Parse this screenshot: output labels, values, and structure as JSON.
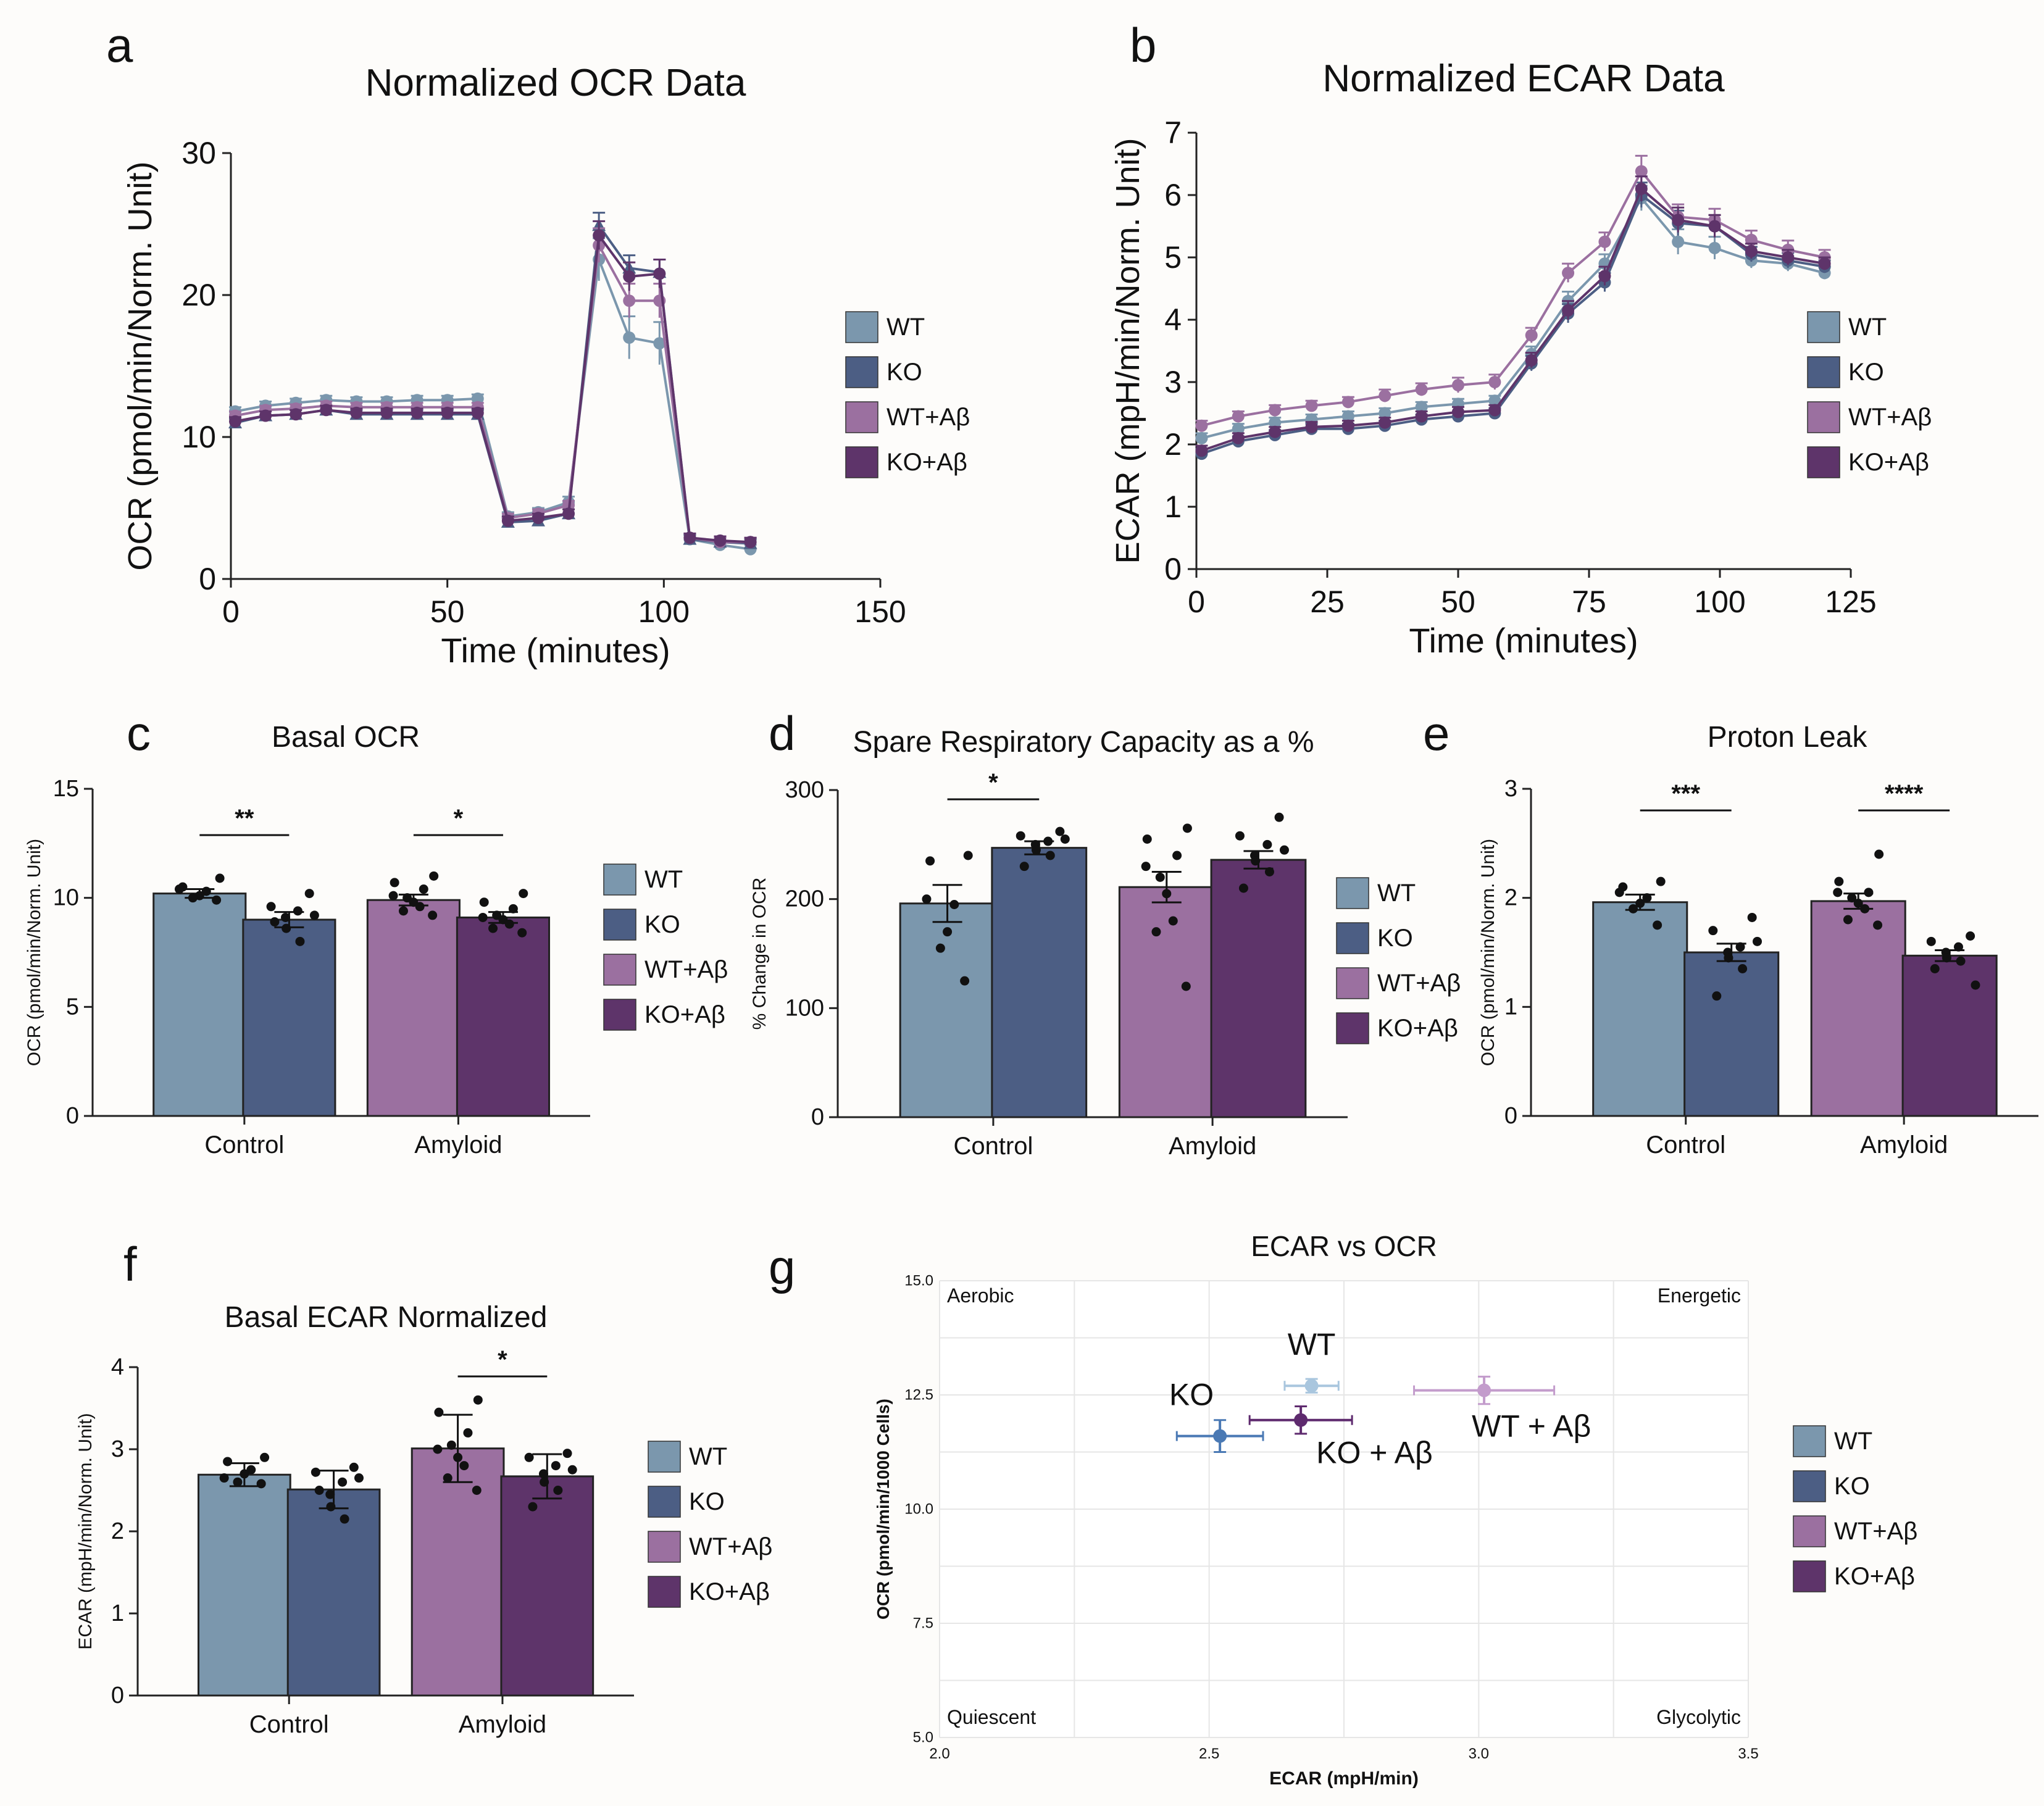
{
  "colors": {
    "WT": "#7b97ad",
    "KO": "#4c5e84",
    "WTAb": "#9b70a0",
    "KOAb": "#5e346a"
  },
  "chart_data": [
    {
      "panel": "a",
      "type": "line",
      "title": "Normalized OCR Data",
      "xlabel": "Time (minutes)",
      "ylabel": "OCR (pmol/min/Norm. Unit)",
      "xlim": [
        0,
        150
      ],
      "ylim": [
        0,
        30
      ],
      "xticks": [
        "0",
        "50",
        "100",
        "150"
      ],
      "yticks": [
        "0",
        "10",
        "20",
        "30"
      ],
      "legend": [
        "WT",
        "KO",
        "WT+Aβ",
        "KO+Aβ"
      ],
      "legend_position": "right",
      "x": [
        1,
        8,
        15,
        22,
        29,
        36,
        43,
        50,
        57,
        64,
        71,
        78,
        85,
        92,
        99,
        106,
        113,
        120
      ],
      "series": [
        {
          "name": "WT",
          "values": [
            11.8,
            12.2,
            12.4,
            12.6,
            12.5,
            12.5,
            12.6,
            12.6,
            12.7,
            4.4,
            4.7,
            5.4,
            22.5,
            17.0,
            16.6,
            2.8,
            2.4,
            2.1
          ],
          "err": [
            0.3,
            0.3,
            0.3,
            0.3,
            0.3,
            0.3,
            0.3,
            0.3,
            0.3,
            0.3,
            0.3,
            0.4,
            1.5,
            1.5,
            1.5,
            0.3,
            0.3,
            0.3
          ]
        },
        {
          "name": "KO",
          "values": [
            11.0,
            11.5,
            11.6,
            11.9,
            11.6,
            11.6,
            11.6,
            11.6,
            11.6,
            4.0,
            4.1,
            4.6,
            24.9,
            21.9,
            21.6,
            2.8,
            2.6,
            2.5
          ],
          "err": [
            0.3,
            0.3,
            0.3,
            0.3,
            0.3,
            0.3,
            0.3,
            0.3,
            0.3,
            0.3,
            0.3,
            0.3,
            0.9,
            0.9,
            0.9,
            0.3,
            0.3,
            0.3
          ]
        },
        {
          "name": "WT+Aβ",
          "values": [
            11.5,
            11.9,
            12.0,
            12.2,
            12.1,
            12.1,
            12.1,
            12.1,
            12.1,
            4.3,
            4.6,
            5.2,
            23.5,
            19.6,
            19.6,
            2.9,
            2.6,
            2.6
          ],
          "err": [
            0.3,
            0.3,
            0.3,
            0.3,
            0.3,
            0.3,
            0.3,
            0.3,
            0.3,
            0.3,
            0.3,
            0.3,
            1.2,
            1.2,
            1.2,
            0.3,
            0.3,
            0.3
          ]
        },
        {
          "name": "KO+Aβ",
          "values": [
            11.1,
            11.5,
            11.6,
            11.9,
            11.7,
            11.7,
            11.7,
            11.7,
            11.7,
            4.1,
            4.3,
            4.6,
            24.2,
            21.3,
            21.5,
            2.9,
            2.7,
            2.6
          ],
          "err": [
            0.3,
            0.3,
            0.3,
            0.3,
            0.3,
            0.3,
            0.3,
            0.3,
            0.3,
            0.3,
            0.3,
            0.3,
            1.0,
            1.0,
            1.0,
            0.3,
            0.3,
            0.3
          ]
        }
      ]
    },
    {
      "panel": "b",
      "type": "line",
      "title": "Normalized ECAR Data",
      "xlabel": "Time (minutes)",
      "ylabel": "ECAR (mpH/min/Norm. Unit)",
      "xlim": [
        0,
        125
      ],
      "ylim": [
        0,
        7
      ],
      "xticks": [
        "0",
        "25",
        "50",
        "75",
        "100",
        "125"
      ],
      "yticks": [
        "0",
        "1",
        "2",
        "3",
        "4",
        "5",
        "6",
        "7"
      ],
      "legend": [
        "WT",
        "KO",
        "WT+Aβ",
        "KO+Aβ"
      ],
      "legend_position": "right",
      "x": [
        1,
        8,
        15,
        22,
        29,
        36,
        43,
        50,
        57,
        64,
        71,
        78,
        85,
        92,
        99,
        106,
        113,
        120
      ],
      "series": [
        {
          "name": "WT",
          "values": [
            2.1,
            2.25,
            2.35,
            2.4,
            2.45,
            2.5,
            2.6,
            2.65,
            2.7,
            3.45,
            4.3,
            4.9,
            5.95,
            5.25,
            5.15,
            4.95,
            4.9,
            4.75
          ],
          "err": [
            0.08,
            0.08,
            0.08,
            0.08,
            0.08,
            0.08,
            0.08,
            0.08,
            0.08,
            0.12,
            0.15,
            0.15,
            0.2,
            0.2,
            0.18,
            0.12,
            0.12,
            0.1
          ]
        },
        {
          "name": "KO",
          "values": [
            1.85,
            2.05,
            2.15,
            2.25,
            2.25,
            2.3,
            2.4,
            2.45,
            2.5,
            3.3,
            4.1,
            4.6,
            6.0,
            5.55,
            5.5,
            5.05,
            4.95,
            4.85
          ],
          "err": [
            0.08,
            0.08,
            0.08,
            0.08,
            0.08,
            0.08,
            0.08,
            0.08,
            0.08,
            0.12,
            0.15,
            0.15,
            0.2,
            0.2,
            0.18,
            0.12,
            0.12,
            0.1
          ]
        },
        {
          "name": "WT+Aβ",
          "values": [
            2.3,
            2.45,
            2.55,
            2.62,
            2.68,
            2.78,
            2.88,
            2.95,
            3.0,
            3.75,
            4.75,
            5.25,
            6.38,
            5.65,
            5.6,
            5.28,
            5.12,
            5.0
          ],
          "err": [
            0.08,
            0.08,
            0.08,
            0.08,
            0.08,
            0.1,
            0.1,
            0.12,
            0.12,
            0.12,
            0.15,
            0.15,
            0.25,
            0.2,
            0.18,
            0.15,
            0.15,
            0.12
          ]
        },
        {
          "name": "KO+Aβ",
          "values": [
            1.9,
            2.1,
            2.2,
            2.28,
            2.3,
            2.35,
            2.45,
            2.52,
            2.55,
            3.35,
            4.15,
            4.7,
            6.1,
            5.6,
            5.5,
            5.1,
            5.0,
            4.9
          ],
          "err": [
            0.08,
            0.08,
            0.08,
            0.08,
            0.08,
            0.08,
            0.08,
            0.08,
            0.08,
            0.12,
            0.15,
            0.15,
            0.2,
            0.2,
            0.18,
            0.12,
            0.12,
            0.1
          ]
        }
      ]
    },
    {
      "panel": "c",
      "type": "bar",
      "title": "Basal OCR",
      "ylabel": "OCR (pmol/min/Norm. Unit)",
      "xlabel": "",
      "ylim": [
        0,
        15
      ],
      "yticks": [
        "0",
        "5",
        "10",
        "15"
      ],
      "groups": [
        "Control",
        "Amyloid"
      ],
      "legend": [
        "WT",
        "KO",
        "WT+Aβ",
        "KO+Aβ"
      ],
      "bars": [
        {
          "name": "WT",
          "value": 10.2,
          "err": 0.2,
          "points": [
            10.9,
            10.5,
            10.3,
            10.1,
            10.0,
            9.9,
            10.4
          ]
        },
        {
          "name": "KO",
          "value": 9.0,
          "err": 0.35,
          "points": [
            10.2,
            9.6,
            9.4,
            9.1,
            8.6,
            8.0,
            8.9,
            9.2
          ]
        },
        {
          "name": "WT+Aβ",
          "value": 9.9,
          "err": 0.25,
          "points": [
            11.0,
            10.7,
            10.4,
            10.0,
            9.8,
            9.6,
            9.4,
            9.2,
            10.1
          ]
        },
        {
          "name": "KO+Aβ",
          "value": 9.1,
          "err": 0.25,
          "points": [
            10.2,
            9.8,
            9.5,
            9.2,
            9.0,
            8.8,
            8.6,
            8.4,
            9.1
          ]
        }
      ],
      "significance": [
        {
          "label": "**",
          "between": [
            0,
            1
          ]
        },
        {
          "label": "*",
          "between": [
            2,
            3
          ]
        }
      ]
    },
    {
      "panel": "d",
      "type": "bar",
      "title": "Spare Respiratory Capacity as a %",
      "ylabel": "% Change in OCR",
      "xlabel": "",
      "ylim": [
        0,
        300
      ],
      "yticks": [
        "0",
        "100",
        "200",
        "300"
      ],
      "groups": [
        "Control",
        "Amyloid"
      ],
      "legend": [
        "WT",
        "KO",
        "WT+Aβ",
        "KO+Aβ"
      ],
      "bars": [
        {
          "name": "WT",
          "value": 196,
          "err": 17,
          "points": [
            240,
            235,
            195,
            170,
            155,
            125,
            200
          ]
        },
        {
          "name": "KO",
          "value": 247,
          "err": 6,
          "points": [
            262,
            258,
            253,
            250,
            245,
            240,
            230,
            255
          ]
        },
        {
          "name": "WT+Aβ",
          "value": 211,
          "err": 14,
          "points": [
            265,
            255,
            240,
            220,
            205,
            180,
            170,
            120,
            230
          ]
        },
        {
          "name": "KO+Aβ",
          "value": 236,
          "err": 8,
          "points": [
            275,
            258,
            250,
            240,
            235,
            225,
            210,
            245
          ]
        }
      ],
      "significance": [
        {
          "label": "*",
          "between": [
            0,
            1
          ]
        }
      ]
    },
    {
      "panel": "e",
      "type": "bar",
      "title": "Proton Leak",
      "ylabel": "OCR (pmol/min/Norm. Unit)",
      "xlabel": "",
      "ylim": [
        0,
        3
      ],
      "yticks": [
        "0",
        "1",
        "2",
        "3"
      ],
      "groups": [
        "Control",
        "Amyloid"
      ],
      "legend": [
        "WT",
        "KO",
        "WT+Aβ",
        "KO+Aβ"
      ],
      "bars": [
        {
          "name": "WT",
          "value": 1.96,
          "err": 0.07,
          "points": [
            2.15,
            2.1,
            2.0,
            1.95,
            1.9,
            1.75,
            2.05
          ]
        },
        {
          "name": "KO",
          "value": 1.5,
          "err": 0.08,
          "points": [
            1.82,
            1.7,
            1.55,
            1.5,
            1.45,
            1.35,
            1.1,
            1.6
          ]
        },
        {
          "name": "WT+Aβ",
          "value": 1.97,
          "err": 0.07,
          "points": [
            2.4,
            2.15,
            2.05,
            2.0,
            1.95,
            1.9,
            1.8,
            1.75,
            2.05
          ]
        },
        {
          "name": "KO+Aβ",
          "value": 1.47,
          "err": 0.05,
          "points": [
            1.65,
            1.6,
            1.55,
            1.5,
            1.45,
            1.42,
            1.35,
            1.2
          ]
        }
      ],
      "significance": [
        {
          "label": "***",
          "between": [
            0,
            1
          ]
        },
        {
          "label": "****",
          "between": [
            2,
            3
          ]
        }
      ]
    },
    {
      "panel": "f",
      "type": "bar",
      "title": "Basal ECAR Normalized",
      "ylabel": "ECAR (mpH/min/Norm. Unit)",
      "xlabel": "",
      "ylim": [
        0,
        4
      ],
      "yticks": [
        "0",
        "1",
        "2",
        "3",
        "4"
      ],
      "groups": [
        "Control",
        "Amyloid"
      ],
      "legend": [
        "WT",
        "KO",
        "WT+Aβ",
        "KO+Aβ"
      ],
      "bars": [
        {
          "name": "WT",
          "value": 2.69,
          "err": 0.14,
          "points": [
            2.9,
            2.85,
            2.75,
            2.7,
            2.6,
            2.58,
            2.65
          ]
        },
        {
          "name": "KO",
          "value": 2.51,
          "err": 0.23,
          "points": [
            2.78,
            2.72,
            2.6,
            2.45,
            2.3,
            2.15,
            2.5,
            2.65
          ]
        },
        {
          "name": "WT+Aβ",
          "value": 3.01,
          "err": 0.41,
          "points": [
            3.6,
            3.45,
            3.2,
            3.05,
            2.9,
            2.8,
            2.65,
            2.5,
            3.0
          ]
        },
        {
          "name": "KO+Aβ",
          "value": 2.67,
          "err": 0.27,
          "points": [
            2.95,
            2.9,
            2.8,
            2.7,
            2.6,
            2.5,
            2.3,
            2.75
          ]
        }
      ],
      "significance": [
        {
          "label": "*",
          "between": [
            2,
            3
          ]
        }
      ]
    },
    {
      "panel": "g",
      "type": "scatter",
      "title": "ECAR vs OCR",
      "xlabel": "ECAR (mpH/min)",
      "ylabel": "OCR (pmol/min/1000 Cells)",
      "xlim": [
        2.0,
        3.5
      ],
      "ylim": [
        5.0,
        15.0
      ],
      "xticks": [
        "2.0",
        "2.5",
        "3.0",
        "3.5"
      ],
      "yticks": [
        "5.0",
        "7.5",
        "10.0",
        "12.5",
        "15.0"
      ],
      "quadrants": [
        "Aerobic",
        "Energetic",
        "Quiescent",
        "Glycolytic"
      ],
      "legend": [
        "WT",
        "KO",
        "WT+Aβ",
        "KO+Aβ"
      ],
      "points": [
        {
          "name": "WT",
          "label": "WT",
          "x": 2.69,
          "y": 12.7,
          "xerr": 0.05,
          "yerr": 0.15
        },
        {
          "name": "KO",
          "label": "KO",
          "x": 2.52,
          "y": 11.6,
          "xerr": 0.08,
          "yerr": 0.35
        },
        {
          "name": "WT+Aβ",
          "label": "WT + Aβ",
          "x": 3.01,
          "y": 12.6,
          "xerr": 0.13,
          "yerr": 0.3
        },
        {
          "name": "KO+Aβ",
          "label": "KO + Aβ",
          "x": 2.67,
          "y": 11.95,
          "xerr": 0.095,
          "yerr": 0.3
        }
      ]
    }
  ]
}
